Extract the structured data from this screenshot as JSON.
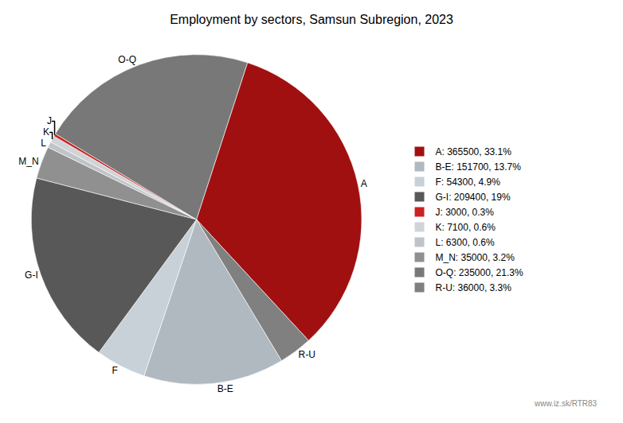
{
  "chart_data": {
    "type": "pie",
    "title": "Employment by sectors, Samsun Subregion, 2023",
    "categories": [
      "A",
      "R-U",
      "B-E",
      "F",
      "G-I",
      "M_N",
      "L",
      "K",
      "J",
      "O-Q"
    ],
    "values": [
      365500,
      36000,
      151700,
      54300,
      209400,
      35000,
      6300,
      7100,
      3000,
      235000
    ],
    "colors": [
      "#a01010",
      "#808080",
      "#b0b8c0",
      "#c8d0d8",
      "#585858",
      "#909090",
      "#c0c4c8",
      "#d0d4d8",
      "#cc2222",
      "#787878"
    ],
    "legend_labels": [
      "A: 365500, 33.1%",
      "B-E: 151700, 13.7%",
      "F: 54300, 4.9%",
      "G-I: 209400, 19%",
      "J: 3000, 0.3%",
      "K: 7100, 0.6%",
      "L: 6300, 0.6%",
      "M_N: 35000, 3.2%",
      "O-Q: 235000, 21.3%",
      "R-U: 36000, 3.3%"
    ],
    "legend_colors": [
      "#a01010",
      "#b0b8c0",
      "#c8d0d8",
      "#585858",
      "#cc2222",
      "#d0d4d8",
      "#c0c4c8",
      "#909090",
      "#787878",
      "#808080"
    ],
    "legend": "right",
    "annotations": [
      "www.iz.sk/RTR83"
    ]
  }
}
